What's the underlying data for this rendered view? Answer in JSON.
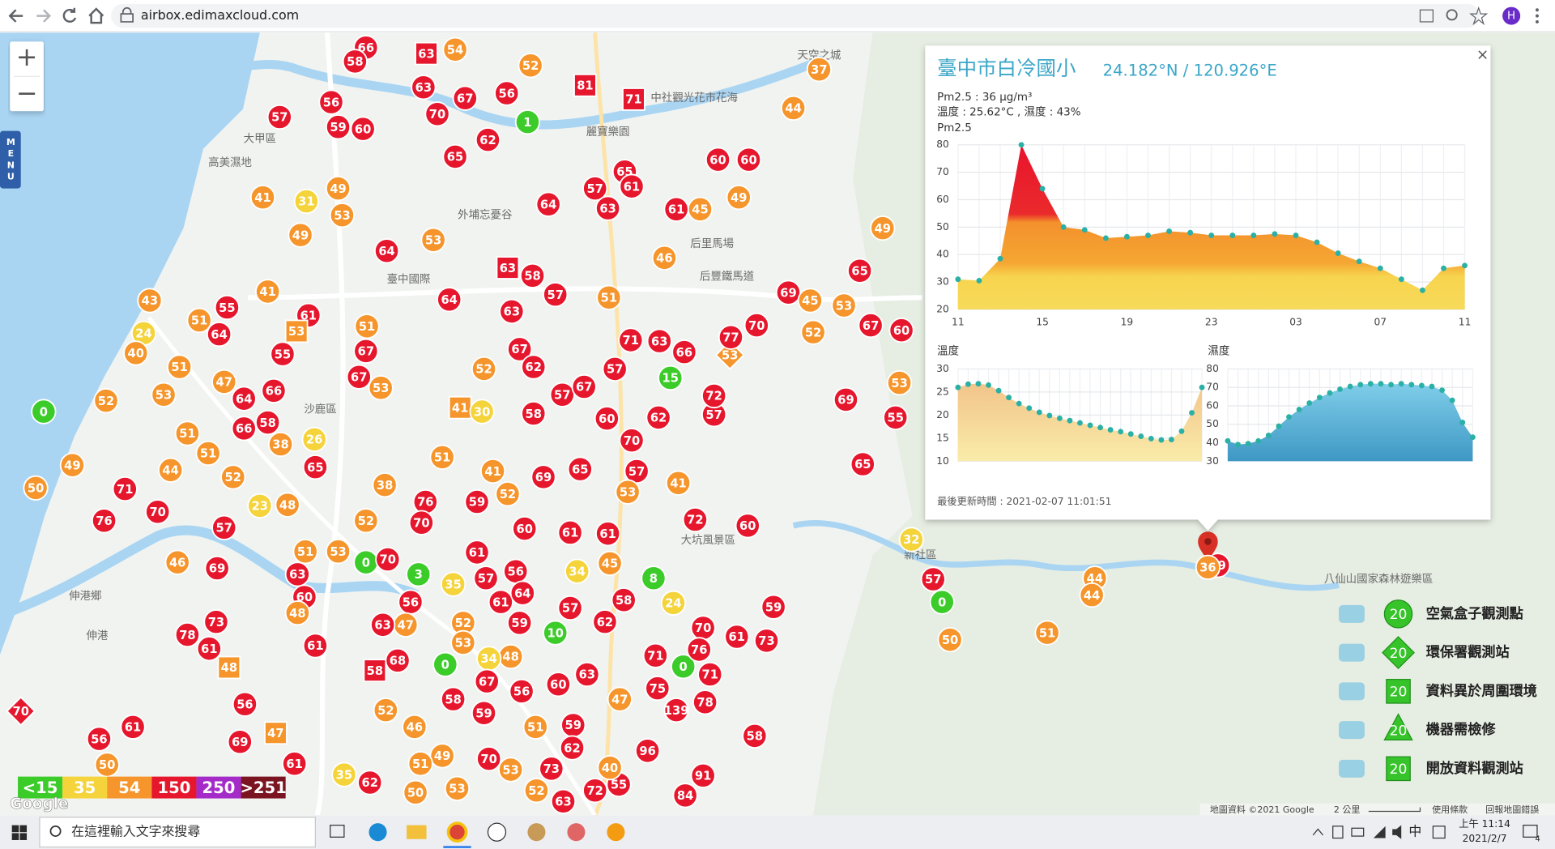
{
  "browser": {
    "url": "airbox.edimaxcloud.com",
    "profile": "H"
  },
  "map": {
    "menu": "MENU",
    "zoom_in": "+",
    "zoom_out": "−",
    "markers": [
      66,
      58,
      63,
      54,
      52,
      81,
      71,
      56,
      67,
      63,
      70,
      56,
      57,
      59,
      60,
      1,
      62,
      65,
      65,
      61,
      57,
      63,
      64,
      60,
      60,
      37,
      44,
      49,
      45,
      61,
      49,
      65,
      41,
      31,
      49,
      53,
      53,
      49,
      64,
      63,
      58,
      57,
      51,
      46,
      64,
      43,
      24,
      40,
      51,
      64,
      55,
      41,
      61,
      53,
      55,
      67,
      51,
      63,
      67,
      52,
      62,
      57,
      67,
      57,
      71,
      63,
      66,
      15,
      53,
      77,
      70,
      69,
      45,
      52,
      53,
      67,
      60,
      53,
      55,
      69,
      65,
      51,
      52,
      53,
      47,
      64,
      66,
      58,
      66,
      38,
      26,
      65,
      51,
      51,
      67,
      53,
      41,
      30,
      58,
      60,
      70,
      62,
      57,
      72,
      0,
      49,
      50,
      44,
      52,
      71,
      70,
      76,
      57,
      23,
      48,
      46,
      69,
      63,
      60,
      51,
      53,
      0,
      70,
      38,
      52,
      76,
      70,
      51,
      41,
      52,
      59,
      69,
      65,
      57,
      53,
      41,
      72,
      60,
      61,
      61,
      60,
      61,
      8,
      45,
      34,
      56,
      57,
      35,
      61,
      64,
      57,
      58,
      24,
      62,
      10,
      59,
      52,
      56,
      47,
      63,
      3,
      48,
      78,
      73,
      61,
      61,
      59,
      61,
      73,
      70,
      71,
      0,
      76,
      71,
      75,
      139,
      78,
      47,
      63,
      60,
      48,
      34,
      53,
      0,
      67,
      56,
      59,
      51,
      59,
      58,
      73,
      62,
      53,
      70,
      49,
      51,
      46,
      58,
      68,
      52,
      47,
      56,
      69,
      61,
      35,
      62,
      50,
      53,
      52,
      63,
      72,
      55,
      96,
      91,
      84,
      58,
      48,
      70,
      61,
      56,
      50,
      44,
      44,
      51,
      50,
      0,
      57,
      32,
      59,
      40
    ],
    "selected": 36,
    "places": [
      "高美濕地",
      "外埔忘憂谷",
      "麗寶樂園",
      "中社觀光花市花海",
      "天空之城",
      "后里馬場",
      "后豐鐵馬道",
      "臺中國際",
      "沙鹿區",
      "伸港鄉",
      "伸港",
      "大坑風景區",
      "新社區",
      "八仙山國家森林遊樂區",
      "大甲區"
    ],
    "attribution": "地圖資料 ©2021 Google",
    "scale": "2 公里",
    "terms": "使用條款",
    "report": "回報地圖錯誤",
    "logo": "Google"
  },
  "legend_scale": [
    {
      "label": "<15",
      "value": 15,
      "color": "#3ccc2a"
    },
    {
      "label": "35",
      "value": 35,
      "color": "#f5d33a"
    },
    {
      "label": "54",
      "value": 54,
      "color": "#f5952b"
    },
    {
      "label": "150",
      "value": 150,
      "color": "#e6162d"
    },
    {
      "label": "250",
      "value": 250,
      "color": "#a52bc9"
    },
    {
      "label": ">251",
      "value": 251,
      "color": "#7a1420"
    }
  ],
  "legend": [
    {
      "label": "空氣盒子觀測點",
      "badge": "20"
    },
    {
      "label": "環保署觀測站",
      "badge": "20"
    },
    {
      "label": "資料異於周圍環境",
      "badge": "20"
    },
    {
      "label": "機器需檢修",
      "badge": "20"
    },
    {
      "label": "開放資料觀測站",
      "badge": "20"
    }
  ],
  "popup": {
    "title": "臺中市白冷國小",
    "coords": "24.182°N / 120.926°E",
    "close": "×",
    "pm25": "Pm2.5 : 36 μg/m³",
    "temp_humidity": "溫度 : 25.62°C , 濕度 : 43%",
    "updated": "最後更新時間 : 2021-02-07 11:01:51"
  },
  "chart_data": [
    {
      "type": "area",
      "title": "Pm2.5",
      "color": "#2bb0a6",
      "categories": [
        "11",
        null,
        null,
        null,
        "15",
        null,
        null,
        null,
        "19",
        null,
        null,
        null,
        "23",
        null,
        null,
        null,
        "03",
        null,
        null,
        null,
        "07",
        null,
        null,
        null,
        "11"
      ],
      "values": [
        31,
        30.5,
        38.5,
        80,
        64,
        50,
        49,
        46,
        46.5,
        47,
        48.5,
        48,
        47,
        47,
        47,
        47.5,
        47,
        44.5,
        40.5,
        37.5,
        35,
        31,
        27,
        35,
        36
      ],
      "ylim": [
        20,
        80
      ],
      "yticks": [
        20,
        30,
        40,
        50,
        60,
        70,
        80
      ]
    },
    {
      "type": "area",
      "title": "溫度",
      "color": "#2bb0a6",
      "values": [
        26,
        26.7,
        26.8,
        26.5,
        25.3,
        23.8,
        22.5,
        21.5,
        20.6,
        19.9,
        19.3,
        18.8,
        18.3,
        17.8,
        17.3,
        16.8,
        16.4,
        15.9,
        15.4,
        14.9,
        14.6,
        14.7,
        16.5,
        20.5,
        26
      ],
      "ylim": [
        10,
        30
      ],
      "yticks": [
        10,
        15,
        20,
        25,
        30
      ]
    },
    {
      "type": "area",
      "title": "濕度",
      "color": "#2bb0a6",
      "values": [
        41,
        39,
        39.5,
        41,
        44,
        49,
        54,
        58,
        61.5,
        64.5,
        67,
        69,
        70.5,
        71.5,
        72,
        72,
        71.5,
        72,
        71.5,
        71,
        70.5,
        68.5,
        63,
        51,
        43
      ],
      "ylim": [
        30,
        80
      ],
      "yticks": [
        30,
        40,
        50,
        60,
        70,
        80
      ]
    }
  ],
  "taskbar": {
    "search": "在這裡輸入文字來搜尋",
    "ime": "中",
    "time": "上午 11:14",
    "date": "2021/2/7",
    "notifications": "4"
  }
}
